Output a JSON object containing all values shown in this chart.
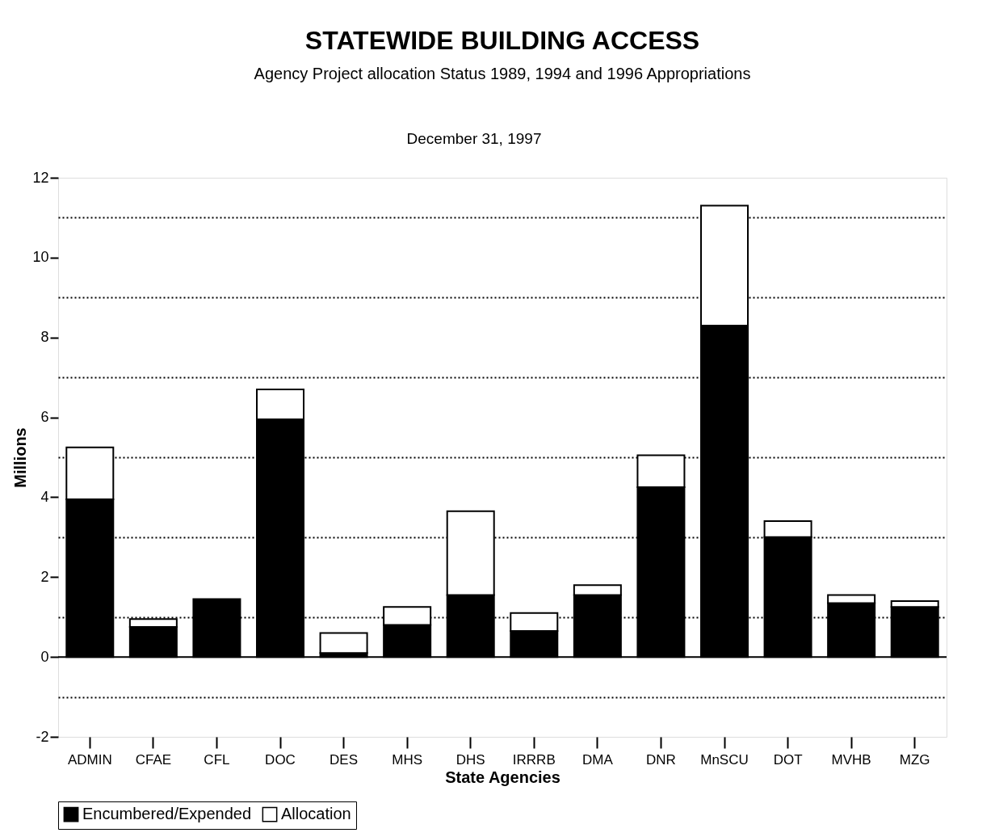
{
  "chart_data": {
    "type": "bar",
    "title": "STATEWIDE BUILDING ACCESS",
    "subtitle": "Agency Project allocation Status 1989, 1994 and 1996 Appropriations",
    "annotations": [
      "December 31, 1997"
    ],
    "xlabel": "State Agencies",
    "ylabel": "Millions",
    "categories": [
      "ADMIN",
      "CFAE",
      "CFL",
      "DOC",
      "DES",
      "MHS",
      "DHS",
      "IRRRB",
      "DMA",
      "DNR",
      "MnSCU",
      "DOT",
      "MVHB",
      "MZG"
    ],
    "stacked": true,
    "series": [
      {
        "name": "Encumbered/Expended",
        "color": "#000000",
        "values": [
          3.95,
          0.75,
          1.45,
          5.95,
          0.1,
          0.8,
          1.55,
          0.65,
          1.55,
          4.25,
          8.3,
          3.0,
          1.35,
          1.25
        ]
      },
      {
        "name": "Allocation",
        "color": "#ffffff",
        "values": [
          1.3,
          0.2,
          0,
          0.75,
          0.5,
          0.45,
          2.1,
          0.45,
          0.25,
          0.8,
          3.0,
          0.4,
          0.2,
          0.15
        ]
      }
    ],
    "ylim": [
      -2,
      12
    ],
    "yticks": [
      -2,
      {
        "value": -1,
        "label": null
      },
      0,
      {
        "value": 1,
        "label": null
      },
      2,
      {
        "value": 3,
        "label": null
      },
      4,
      {
        "value": 5,
        "label": null
      },
      6,
      {
        "value": 7,
        "label": null
      },
      8,
      {
        "value": 9,
        "label": null
      },
      10,
      {
        "value": 11,
        "label": null
      },
      12
    ],
    "ref_lines": [
      {
        "axis": "y",
        "value": 0,
        "color": "#000000"
      }
    ],
    "grid": "y",
    "legend": "bottom left"
  }
}
